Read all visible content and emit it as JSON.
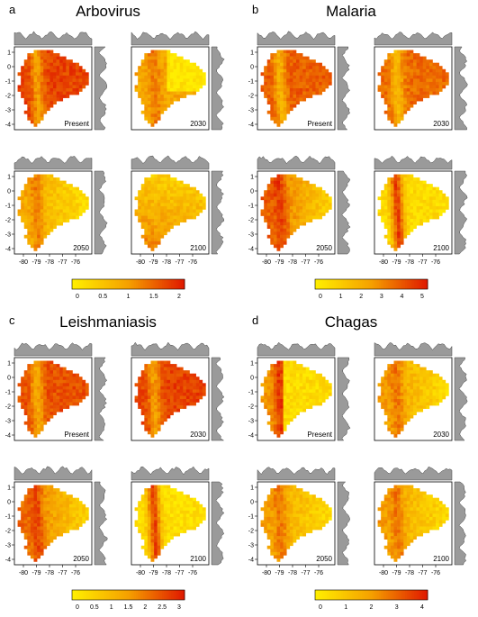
{
  "colors": {
    "low": "#ffee00",
    "mid": "#f5a000",
    "high": "#e01a00",
    "marginal": "#9a9a9a",
    "frame": "#000000"
  },
  "panels": [
    {
      "letter": "a",
      "title": "Arbovirus",
      "legend_ticks": [
        "0",
        "0.5",
        "1",
        "1.5",
        "2"
      ],
      "maps": [
        {
          "label": "Present",
          "level": 0.85,
          "pattern": "east"
        },
        {
          "label": "2030",
          "level": 0.45,
          "pattern": "split"
        },
        {
          "label": "2050",
          "level": 0.45,
          "pattern": "west"
        },
        {
          "label": "2100",
          "level": 0.55,
          "pattern": "south"
        }
      ]
    },
    {
      "letter": "b",
      "title": "Malaria",
      "legend_ticks": [
        "0",
        "1",
        "2",
        "3",
        "4",
        "5"
      ],
      "maps": [
        {
          "label": "Present",
          "level": 0.75,
          "pattern": "east"
        },
        {
          "label": "2030",
          "level": 0.7,
          "pattern": "east"
        },
        {
          "label": "2050",
          "level": 0.75,
          "pattern": "west"
        },
        {
          "label": "2100",
          "level": 0.25,
          "pattern": "ridge"
        }
      ]
    },
    {
      "letter": "c",
      "title": "Leishmaniasis",
      "legend_ticks": [
        "0",
        "0.5",
        "1",
        "1.5",
        "2",
        "2.5",
        "3"
      ],
      "maps": [
        {
          "label": "Present",
          "level": 0.8,
          "pattern": "east"
        },
        {
          "label": "2030",
          "level": 0.85,
          "pattern": "east"
        },
        {
          "label": "2050",
          "level": 0.7,
          "pattern": "west"
        },
        {
          "label": "2100",
          "level": 0.2,
          "pattern": "ridge"
        }
      ]
    },
    {
      "letter": "d",
      "title": "Chagas",
      "legend_ticks": [
        "0",
        "1",
        "2",
        "3",
        "4"
      ],
      "maps": [
        {
          "label": "Present",
          "level": 0.3,
          "pattern": "coast"
        },
        {
          "label": "2030",
          "level": 0.5,
          "pattern": "west"
        },
        {
          "label": "2050",
          "level": 0.5,
          "pattern": "west"
        },
        {
          "label": "2100",
          "level": 0.5,
          "pattern": "west"
        }
      ]
    }
  ],
  "y_ticks": [
    "1",
    "0",
    "-1",
    "-2",
    "-3",
    "-4"
  ],
  "x_ticks": [
    "-80",
    "-79",
    "-78",
    "-77",
    "-76"
  ]
}
